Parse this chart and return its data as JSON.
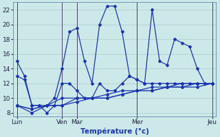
{
  "background_color": "#cce8e8",
  "grid_color": "#aacccc",
  "line_color": "#1a35b0",
  "vline_color": "#444466",
  "xlabel": "Température (°c)",
  "ylim": [
    7.5,
    23.0
  ],
  "yticks": [
    8,
    10,
    12,
    14,
    16,
    18,
    20,
    22
  ],
  "x_tick_positions": [
    0,
    6,
    8,
    16,
    26
  ],
  "x_tick_labels": [
    "Lun",
    "Ven",
    "Mar",
    "Mer",
    "Jeu"
  ],
  "vlines_x": [
    0,
    6,
    8,
    16,
    26
  ],
  "line0_x": [
    0,
    1,
    2,
    3,
    4,
    5,
    6,
    7,
    8,
    9,
    10,
    11,
    12,
    13,
    14,
    15,
    16,
    17,
    18,
    19,
    20,
    21,
    22,
    23,
    24,
    25,
    26
  ],
  "line0_y": [
    15,
    13,
    9,
    9,
    9,
    10,
    14,
    19,
    19.5,
    15,
    12,
    20,
    22.5,
    22.5,
    19,
    13,
    12.5,
    12,
    22,
    15,
    14.5,
    18,
    17.5,
    17,
    14,
    12,
    12
  ],
  "line1_x": [
    0,
    1,
    2,
    3,
    4,
    5,
    6,
    7,
    8,
    9,
    10,
    11,
    12,
    13,
    14,
    15,
    16,
    17,
    18,
    19,
    20,
    21,
    22,
    23,
    24,
    25,
    26
  ],
  "line1_y": [
    13,
    12.5,
    9,
    9,
    8,
    9,
    12,
    12,
    11,
    10,
    10,
    12,
    11,
    11,
    12,
    13,
    12.5,
    12,
    12,
    12,
    12,
    12,
    12,
    12,
    12,
    12,
    12
  ],
  "line2_x": [
    0,
    2,
    4,
    6,
    8,
    10,
    12,
    14,
    16,
    18,
    20,
    22,
    24,
    26
  ],
  "line2_y": [
    9,
    8.5,
    9,
    10,
    10,
    10,
    10.5,
    11,
    11,
    11.5,
    11.5,
    12,
    12,
    12
  ],
  "line3_x": [
    0,
    2,
    4,
    6,
    8,
    10,
    12,
    14,
    16,
    18,
    20,
    22,
    24,
    26
  ],
  "line3_y": [
    9,
    8.5,
    9,
    9,
    10,
    10,
    10,
    10.5,
    11,
    11,
    11.5,
    11.5,
    12,
    12
  ],
  "line4_x": [
    0,
    2,
    4,
    6,
    8,
    10,
    12,
    14,
    16,
    18,
    20,
    22,
    24,
    26
  ],
  "line4_y": [
    9,
    8,
    9,
    9,
    9.5,
    10,
    10,
    10.5,
    11,
    11,
    11.5,
    11.5,
    11.5,
    12
  ]
}
